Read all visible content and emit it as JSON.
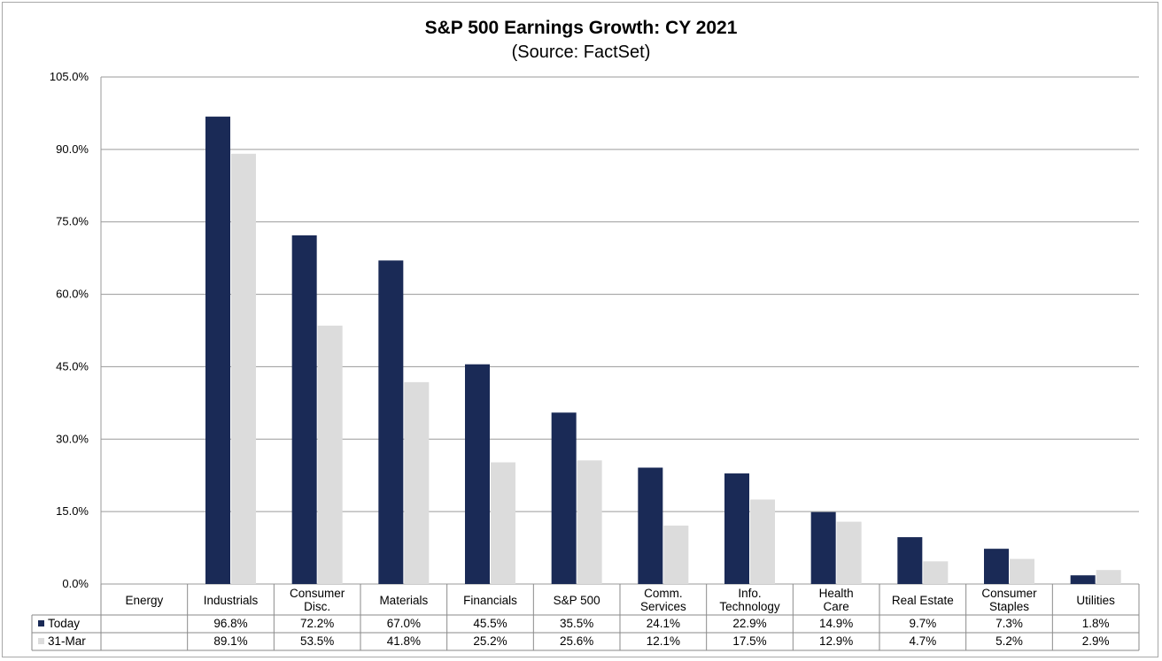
{
  "chart_data": {
    "type": "bar",
    "title": "S&P 500 Earnings Growth: CY 2021",
    "subtitle": "(Source: FactSet)",
    "categories": [
      [
        "Energy"
      ],
      [
        "Industrials"
      ],
      [
        "Consumer",
        "Disc."
      ],
      [
        "Materials"
      ],
      [
        "Financials"
      ],
      [
        "S&P 500"
      ],
      [
        "Comm.",
        "Services"
      ],
      [
        "Info.",
        "Technology"
      ],
      [
        "Health",
        "Care"
      ],
      [
        "Real Estate"
      ],
      [
        "Consumer",
        "Staples"
      ],
      [
        "Utilities"
      ]
    ],
    "series": [
      {
        "name": "Today",
        "color": "#1a2a56",
        "values": [
          null,
          96.8,
          72.2,
          67.0,
          45.5,
          35.5,
          24.1,
          22.9,
          14.9,
          9.7,
          7.3,
          1.8
        ],
        "labels": [
          "",
          "96.8%",
          "72.2%",
          "67.0%",
          "45.5%",
          "35.5%",
          "24.1%",
          "22.9%",
          "14.9%",
          "9.7%",
          "7.3%",
          "1.8%"
        ]
      },
      {
        "name": "31-Mar",
        "color": "#dcdcdc",
        "values": [
          null,
          89.1,
          53.5,
          41.8,
          25.2,
          25.6,
          12.1,
          17.5,
          12.9,
          4.7,
          5.2,
          2.9
        ],
        "labels": [
          "",
          "89.1%",
          "53.5%",
          "41.8%",
          "25.2%",
          "25.6%",
          "12.1%",
          "17.5%",
          "12.9%",
          "4.7%",
          "5.2%",
          "2.9%"
        ]
      }
    ],
    "ylim": [
      0,
      105
    ],
    "yticks": [
      0,
      15,
      30,
      45,
      60,
      75,
      90,
      105
    ],
    "ytick_labels": [
      "0.0%",
      "15.0%",
      "30.0%",
      "45.0%",
      "60.0%",
      "75.0%",
      "90.0%",
      "105.0%"
    ],
    "grid": true,
    "legend": "data-table",
    "xlabel": "",
    "ylabel": ""
  }
}
